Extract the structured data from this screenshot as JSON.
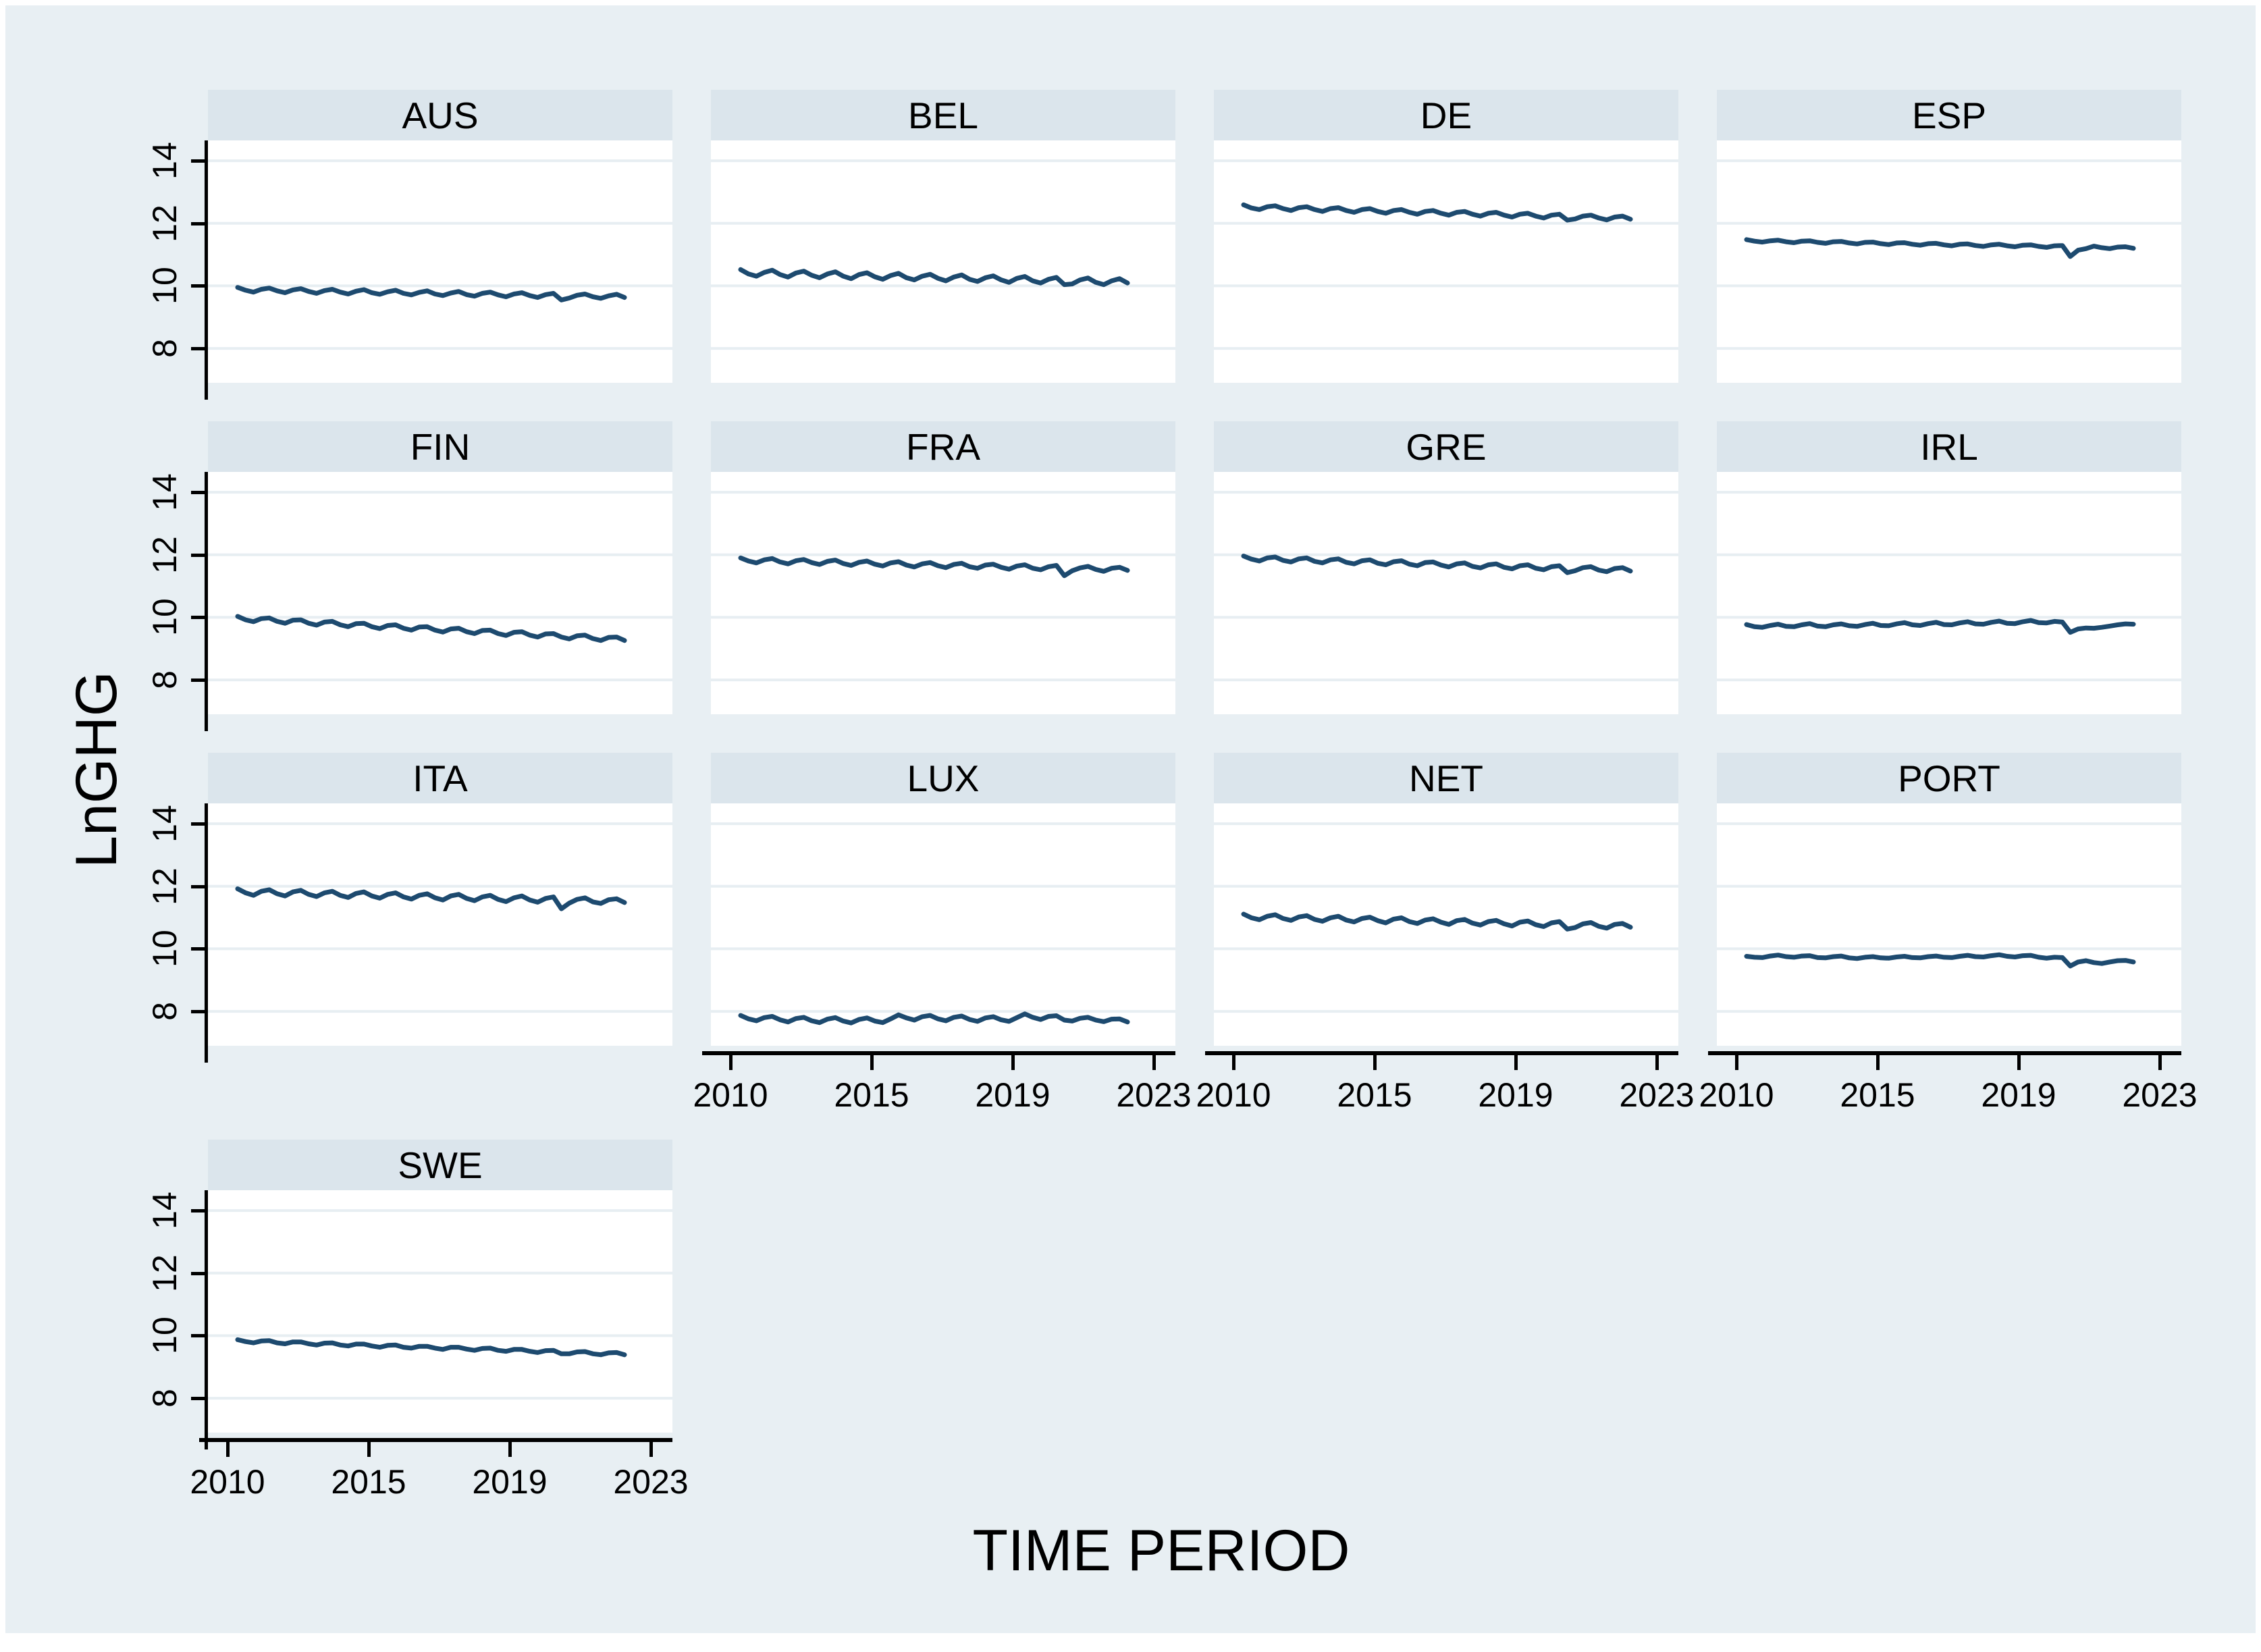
{
  "chart_data": {
    "type": "line",
    "layout": "small-multiples-4x4",
    "xlabel": "TIME PERIOD",
    "ylabel": "LnGHG",
    "ylim": [
      6.9,
      14.65
    ],
    "y_ticks": [
      8,
      10,
      12,
      14
    ],
    "x_ticks": [
      2010,
      2015,
      2019,
      2023
    ],
    "x_start": 2010,
    "x_step_years": 0.25,
    "grid": "horizontal",
    "legend": "none",
    "colors": {
      "background": "#e8eff3",
      "header_band": "#dbe5ec",
      "plot_background": "#ffffff",
      "gridline": "#e7eef2",
      "line": "#1d4a6f",
      "axis": "#000000",
      "text": "#000000"
    },
    "panels": [
      {
        "country": "AUS",
        "values": [
          9.95,
          9.86,
          9.8,
          9.89,
          9.93,
          9.84,
          9.78,
          9.87,
          9.91,
          9.82,
          9.76,
          9.85,
          9.89,
          9.8,
          9.74,
          9.83,
          9.88,
          9.78,
          9.73,
          9.81,
          9.86,
          9.76,
          9.71,
          9.79,
          9.84,
          9.74,
          9.69,
          9.77,
          9.82,
          9.72,
          9.67,
          9.76,
          9.8,
          9.71,
          9.65,
          9.74,
          9.78,
          9.69,
          9.63,
          9.72,
          9.76,
          9.55,
          9.61,
          9.7,
          9.74,
          9.65,
          9.6,
          9.68,
          9.73,
          9.63
        ]
      },
      {
        "country": "BEL",
        "values": [
          10.52,
          10.38,
          10.31,
          10.43,
          10.5,
          10.36,
          10.28,
          10.41,
          10.47,
          10.34,
          10.26,
          10.38,
          10.45,
          10.31,
          10.23,
          10.36,
          10.42,
          10.29,
          10.21,
          10.33,
          10.4,
          10.26,
          10.19,
          10.31,
          10.37,
          10.24,
          10.16,
          10.28,
          10.35,
          10.21,
          10.14,
          10.26,
          10.32,
          10.19,
          10.11,
          10.24,
          10.3,
          10.16,
          10.09,
          10.21,
          10.27,
          10.04,
          10.06,
          10.19,
          10.25,
          10.11,
          10.04,
          10.16,
          10.23,
          10.09
        ]
      },
      {
        "country": "DE",
        "values": [
          12.59,
          12.49,
          12.44,
          12.53,
          12.56,
          12.47,
          12.41,
          12.5,
          12.53,
          12.44,
          12.38,
          12.47,
          12.5,
          12.41,
          12.35,
          12.44,
          12.47,
          12.38,
          12.32,
          12.41,
          12.44,
          12.35,
          12.29,
          12.38,
          12.41,
          12.32,
          12.26,
          12.35,
          12.38,
          12.29,
          12.23,
          12.32,
          12.35,
          12.26,
          12.2,
          12.29,
          12.32,
          12.23,
          12.17,
          12.26,
          12.29,
          12.1,
          12.14,
          12.23,
          12.26,
          12.17,
          12.11,
          12.2,
          12.23,
          12.13
        ]
      },
      {
        "country": "ESP",
        "values": [
          11.48,
          11.43,
          11.4,
          11.44,
          11.46,
          11.41,
          11.38,
          11.43,
          11.44,
          11.39,
          11.36,
          11.41,
          11.42,
          11.37,
          11.34,
          11.39,
          11.4,
          11.35,
          11.32,
          11.37,
          11.38,
          11.33,
          11.3,
          11.35,
          11.36,
          11.31,
          11.28,
          11.33,
          11.34,
          11.29,
          11.26,
          11.31,
          11.33,
          11.28,
          11.25,
          11.3,
          11.31,
          11.26,
          11.23,
          11.28,
          11.29,
          10.94,
          11.14,
          11.19,
          11.27,
          11.22,
          11.19,
          11.24,
          11.25,
          11.2
        ]
      },
      {
        "country": "FIN",
        "values": [
          10.03,
          9.92,
          9.86,
          9.96,
          9.98,
          9.87,
          9.81,
          9.91,
          9.92,
          9.81,
          9.75,
          9.85,
          9.87,
          9.76,
          9.7,
          9.8,
          9.81,
          9.7,
          9.64,
          9.74,
          9.76,
          9.65,
          9.59,
          9.69,
          9.7,
          9.59,
          9.53,
          9.63,
          9.65,
          9.54,
          9.48,
          9.58,
          9.59,
          9.48,
          9.42,
          9.52,
          9.54,
          9.43,
          9.37,
          9.47,
          9.48,
          9.37,
          9.31,
          9.41,
          9.43,
          9.32,
          9.26,
          9.36,
          9.37,
          9.26
        ]
      },
      {
        "country": "FRA",
        "values": [
          11.9,
          11.8,
          11.74,
          11.84,
          11.88,
          11.77,
          11.71,
          11.81,
          11.85,
          11.75,
          11.69,
          11.79,
          11.83,
          11.72,
          11.66,
          11.76,
          11.8,
          11.7,
          11.64,
          11.74,
          11.78,
          11.67,
          11.61,
          11.71,
          11.75,
          11.65,
          11.59,
          11.69,
          11.73,
          11.62,
          11.57,
          11.67,
          11.7,
          11.6,
          11.54,
          11.64,
          11.68,
          11.57,
          11.52,
          11.62,
          11.66,
          11.33,
          11.49,
          11.58,
          11.63,
          11.53,
          11.47,
          11.57,
          11.6,
          11.5
        ]
      },
      {
        "country": "GRE",
        "values": [
          11.96,
          11.86,
          11.8,
          11.9,
          11.93,
          11.82,
          11.77,
          11.87,
          11.9,
          11.79,
          11.74,
          11.84,
          11.87,
          11.76,
          11.71,
          11.81,
          11.84,
          11.73,
          11.68,
          11.78,
          11.81,
          11.7,
          11.65,
          11.75,
          11.77,
          11.67,
          11.61,
          11.71,
          11.74,
          11.63,
          11.58,
          11.68,
          11.71,
          11.6,
          11.55,
          11.65,
          11.68,
          11.57,
          11.52,
          11.62,
          11.65,
          11.43,
          11.49,
          11.59,
          11.62,
          11.51,
          11.46,
          11.56,
          11.59,
          11.48
        ]
      },
      {
        "country": "IRL",
        "values": [
          9.77,
          9.7,
          9.68,
          9.74,
          9.78,
          9.71,
          9.7,
          9.76,
          9.8,
          9.72,
          9.7,
          9.76,
          9.79,
          9.73,
          9.71,
          9.77,
          9.81,
          9.74,
          9.73,
          9.79,
          9.83,
          9.76,
          9.74,
          9.8,
          9.84,
          9.77,
          9.76,
          9.82,
          9.86,
          9.79,
          9.78,
          9.84,
          9.88,
          9.81,
          9.8,
          9.86,
          9.9,
          9.83,
          9.82,
          9.87,
          9.85,
          9.52,
          9.63,
          9.66,
          9.65,
          9.68,
          9.72,
          9.76,
          9.79,
          9.78
        ]
      },
      {
        "country": "ITA",
        "values": [
          11.92,
          11.79,
          11.71,
          11.84,
          11.89,
          11.76,
          11.69,
          11.82,
          11.87,
          11.74,
          11.67,
          11.79,
          11.84,
          11.71,
          11.64,
          11.77,
          11.82,
          11.69,
          11.62,
          11.74,
          11.79,
          11.66,
          11.59,
          11.71,
          11.76,
          11.63,
          11.56,
          11.69,
          11.74,
          11.61,
          11.54,
          11.66,
          11.71,
          11.58,
          11.51,
          11.63,
          11.69,
          11.56,
          11.49,
          11.61,
          11.66,
          11.28,
          11.46,
          11.58,
          11.63,
          11.5,
          11.45,
          11.57,
          11.6,
          11.48
        ]
      },
      {
        "country": "LUX",
        "values": [
          7.87,
          7.76,
          7.7,
          7.8,
          7.84,
          7.73,
          7.66,
          7.77,
          7.81,
          7.7,
          7.64,
          7.75,
          7.8,
          7.69,
          7.63,
          7.74,
          7.79,
          7.69,
          7.64,
          7.76,
          7.89,
          7.79,
          7.72,
          7.83,
          7.87,
          7.76,
          7.7,
          7.81,
          7.85,
          7.74,
          7.68,
          7.79,
          7.83,
          7.73,
          7.68,
          7.8,
          7.92,
          7.81,
          7.74,
          7.84,
          7.86,
          7.72,
          7.69,
          7.78,
          7.81,
          7.72,
          7.67,
          7.75,
          7.76,
          7.66
        ]
      },
      {
        "country": "NET",
        "values": [
          11.11,
          10.99,
          10.93,
          11.04,
          11.09,
          10.97,
          10.91,
          11.02,
          11.06,
          10.94,
          10.88,
          10.99,
          11.04,
          10.92,
          10.86,
          10.97,
          11.01,
          10.9,
          10.83,
          10.95,
          10.99,
          10.87,
          10.81,
          10.92,
          10.96,
          10.85,
          10.78,
          10.9,
          10.94,
          10.82,
          10.76,
          10.87,
          10.91,
          10.8,
          10.73,
          10.85,
          10.89,
          10.77,
          10.71,
          10.83,
          10.87,
          10.63,
          10.68,
          10.8,
          10.84,
          10.72,
          10.66,
          10.78,
          10.81,
          10.69
        ]
      },
      {
        "country": "PORT",
        "values": [
          9.76,
          9.73,
          9.72,
          9.77,
          9.8,
          9.75,
          9.73,
          9.77,
          9.78,
          9.72,
          9.71,
          9.75,
          9.77,
          9.71,
          9.69,
          9.73,
          9.75,
          9.71,
          9.7,
          9.74,
          9.76,
          9.72,
          9.71,
          9.75,
          9.77,
          9.73,
          9.72,
          9.76,
          9.79,
          9.75,
          9.74,
          9.78,
          9.81,
          9.76,
          9.74,
          9.78,
          9.79,
          9.73,
          9.7,
          9.73,
          9.72,
          9.45,
          9.58,
          9.62,
          9.56,
          9.53,
          9.58,
          9.62,
          9.63,
          9.58
        ]
      },
      {
        "country": "SWE",
        "values": [
          9.87,
          9.81,
          9.77,
          9.83,
          9.84,
          9.77,
          9.74,
          9.8,
          9.8,
          9.74,
          9.7,
          9.76,
          9.77,
          9.7,
          9.67,
          9.73,
          9.73,
          9.67,
          9.63,
          9.69,
          9.7,
          9.63,
          9.6,
          9.66,
          9.66,
          9.6,
          9.56,
          9.63,
          9.63,
          9.57,
          9.53,
          9.59,
          9.6,
          9.53,
          9.5,
          9.56,
          9.56,
          9.5,
          9.46,
          9.52,
          9.53,
          9.42,
          9.42,
          9.48,
          9.49,
          9.42,
          9.39,
          9.45,
          9.46,
          9.39
        ]
      }
    ]
  }
}
